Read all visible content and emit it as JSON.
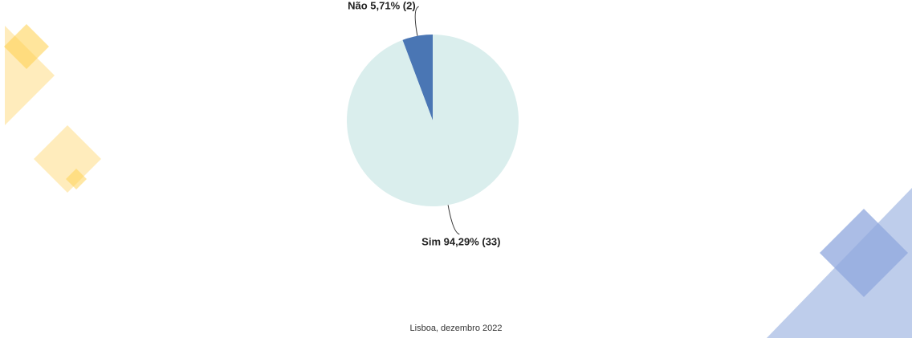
{
  "chart_data": {
    "type": "pie",
    "categories": [
      "Não",
      "Sim"
    ],
    "values": [
      5.71,
      94.29
    ],
    "value_labels": [
      "5,71%",
      "94,29%"
    ],
    "count_labels": [
      "(2)",
      "(33)"
    ],
    "colors": [
      "#4a76b4",
      "#daeeed"
    ]
  },
  "footer": "Lisboa, dezembro 2022"
}
